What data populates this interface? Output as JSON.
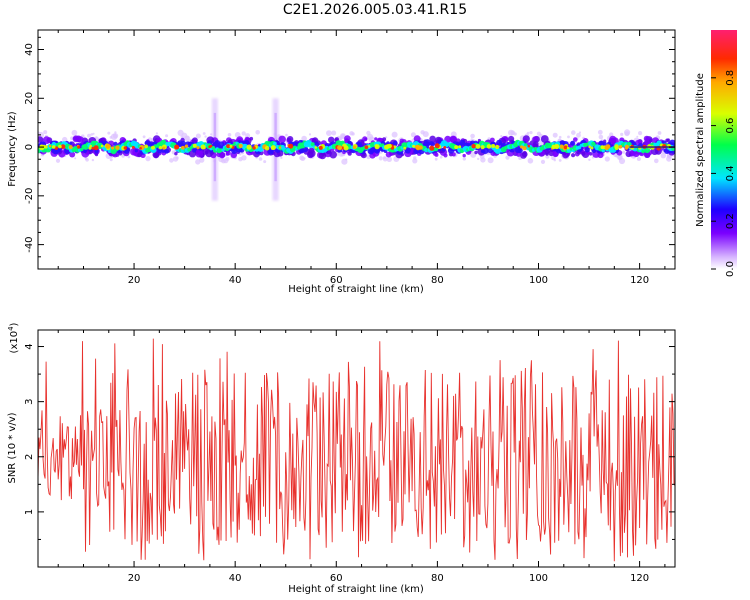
{
  "title": "C2E1.2026.005.03.41.R15",
  "chart_data": [
    {
      "type": "heatmap",
      "xlabel": "Height of straight line (km)",
      "ylabel": "Frequency (Hz)",
      "xlim": [
        1,
        127
      ],
      "ylim": [
        -50,
        48
      ],
      "x_ticks": [
        20,
        40,
        60,
        80,
        100,
        120
      ],
      "y_ticks": [
        -40,
        -20,
        0,
        20,
        40
      ],
      "colorbar": {
        "label": "Normalized spectral amplitude",
        "ticks": [
          0.0,
          0.2,
          0.4,
          0.6,
          0.8
        ],
        "tick_labels": [
          "0.0",
          "0.2",
          "0.4",
          "0.6",
          "0.8"
        ],
        "range": [
          0,
          1
        ]
      },
      "band": {
        "center_freq_hz": 0,
        "half_width_hz": 4,
        "spikes_km": [
          36,
          48
        ]
      }
    },
    {
      "type": "line",
      "xlabel": "Height of straight line (km)",
      "ylabel": "SNR (10 * v/v)",
      "multiplier_label": "(x10",
      "multiplier_exp": "4",
      "multiplier_close": ")",
      "xlim": [
        1,
        127
      ],
      "ylim": [
        0,
        4.3
      ],
      "x_ticks": [
        20,
        40,
        60,
        80,
        100,
        120
      ],
      "y_ticks": [
        1,
        2,
        3,
        4
      ],
      "series": [
        {
          "color": "#e8312d",
          "x_step_km": 0.2,
          "y_summary": {
            "min": 0.1,
            "max": 4.15,
            "typical": 2.0
          }
        }
      ]
    }
  ]
}
